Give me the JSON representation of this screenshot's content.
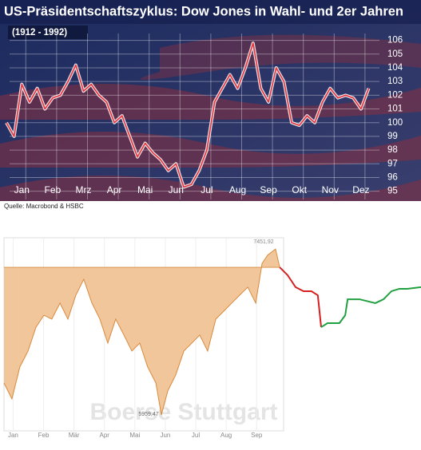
{
  "chart_data": [
    {
      "type": "line",
      "title": "US-Präsidentschaftszyklus: Dow Jones in Wahl- und 2er Jahren",
      "subtitle": "(1912 - 1992)",
      "source": "Quelle: Macrobond & HSBC",
      "categories": [
        null,
        null,
        "Jan",
        null,
        null,
        null,
        "Feb",
        null,
        null,
        null,
        "Mrz",
        null,
        null,
        null,
        "Apr",
        null,
        null,
        null,
        "Mai",
        null,
        null,
        null,
        "Jun",
        null,
        null,
        null,
        "Jul",
        null,
        null,
        null,
        "Aug",
        null,
        null,
        null,
        "Sep",
        null,
        null,
        null,
        "Okt",
        null,
        null,
        null,
        "Nov",
        null,
        null,
        null,
        "Dez",
        null
      ],
      "values": [
        100,
        99,
        102.8,
        101.5,
        102.5,
        101,
        101.8,
        102,
        103,
        104.2,
        102.3,
        102.8,
        102,
        101.5,
        100,
        100.5,
        99,
        97.5,
        98.5,
        97.8,
        97.3,
        96.5,
        97,
        95.3,
        95.5,
        96.5,
        98,
        101.5,
        102.5,
        103.5,
        102.5,
        104,
        105.8,
        102.5,
        101.5,
        104,
        103,
        100,
        99.8,
        100.5,
        100,
        101.5,
        102.5,
        101.8,
        102,
        101.8,
        101,
        102.5
      ],
      "color": "#e8343c",
      "ylim": [
        94.4,
        106.5
      ],
      "yticks": [
        95,
        96,
        97,
        98,
        99,
        100,
        101,
        102,
        103,
        104,
        105,
        106
      ],
      "grid": true
    },
    {
      "type": "area",
      "title": "Boerse Stuttgart",
      "annotations": [
        "7451,92",
        "5959,47"
      ],
      "xlim": [
        0,
        13.7
      ],
      "ylim": [
        0,
        100
      ],
      "reference": 89.1,
      "xticks": [
        {
          "value": 0.3,
          "label": "Jan"
        },
        {
          "value": 1.3,
          "label": "Feb"
        },
        {
          "value": 2.3,
          "label": "Mär"
        },
        {
          "value": 3.3,
          "label": "Apr"
        },
        {
          "value": 4.3,
          "label": "Mai"
        },
        {
          "value": 5.3,
          "label": "Jun"
        },
        {
          "value": 6.3,
          "label": "Jul"
        },
        {
          "value": 7.3,
          "label": "Aug"
        },
        {
          "value": 8.3,
          "label": "Sep"
        }
      ],
      "series": [
        {
          "color": "#d88a3c",
          "fill": "#f0c090",
          "x": [
            0,
            0.26,
            0.52,
            0.79,
            1.05,
            1.31,
            1.57,
            1.84,
            2.1,
            2.36,
            2.62,
            2.89,
            3.15,
            3.41,
            3.67,
            3.94,
            4.2,
            4.46,
            4.72,
            4.99,
            5.17,
            5.38,
            5.64,
            5.91,
            6.17,
            6.43,
            6.69,
            6.96,
            7.22,
            7.48,
            7.74,
            8.01,
            8.27,
            8.48,
            8.66,
            8.92,
            9.06
          ],
          "values": [
            26.1,
            17.4,
            34.8,
            43.5,
            56.5,
            63,
            60.9,
            69.6,
            60.9,
            73.9,
            82.6,
            69.6,
            60.9,
            47.8,
            60.9,
            52.2,
            43.5,
            47.8,
            34.8,
            26.1,
            8.7,
            21.7,
            30.4,
            43.5,
            47.8,
            52.2,
            43.5,
            60.9,
            65.2,
            69.6,
            73.9,
            78.3,
            69.6,
            91.3,
            95.7,
            99.1,
            89.1
          ]
        },
        {
          "color": "#d42020",
          "x": [
            9.06,
            9.32,
            9.58,
            9.84,
            10.1,
            10.31,
            10.42
          ],
          "values": [
            89.1,
            84.8,
            78.3,
            76.1,
            76.1,
            73.9,
            56.5
          ]
        },
        {
          "color": "#20a040",
          "x": [
            10.42,
            10.63,
            11.02,
            11.21,
            11.29,
            11.68,
            12.2,
            12.47,
            12.73,
            12.99,
            13.25,
            13.7
          ],
          "values": [
            56.5,
            58.7,
            58.7,
            63,
            71.7,
            71.7,
            69.6,
            71.7,
            76.1,
            77.4,
            77.4,
            78.3
          ]
        }
      ]
    }
  ]
}
